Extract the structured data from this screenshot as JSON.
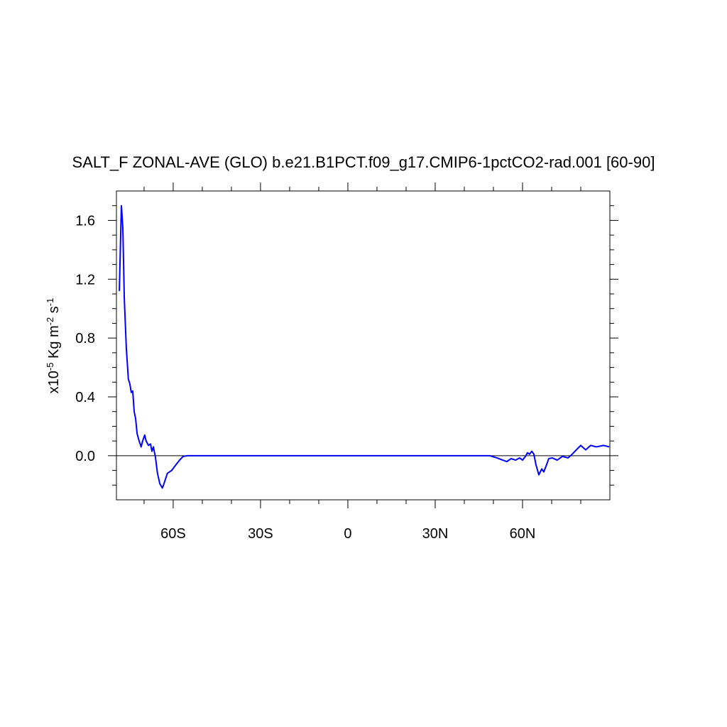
{
  "chart_data": {
    "type": "line",
    "title": "SALT_F ZONAL-AVE (GLO) b.e21.B1PCT.f09_g17.CMIP6-1pctCO2-rad.001 [60-90]",
    "ylabel_parts": [
      {
        "text": "x10"
      },
      {
        "text": "-5",
        "sup": true
      },
      {
        "text": " Kg m"
      },
      {
        "text": "-2",
        "sup": true
      },
      {
        "text": " s"
      },
      {
        "text": "-1",
        "sup": true
      }
    ],
    "xlim": [
      -79.5,
      90
    ],
    "ylim": [
      -0.3,
      1.8
    ],
    "xticks": [
      {
        "value": -60,
        "label": "60S"
      },
      {
        "value": -30,
        "label": "30S"
      },
      {
        "value": 0,
        "label": "0"
      },
      {
        "value": 30,
        "label": "30N"
      },
      {
        "value": 60,
        "label": "60N"
      }
    ],
    "xminorticks": [
      -70,
      -50,
      -40,
      -20,
      -10,
      10,
      20,
      40,
      50,
      70,
      80
    ],
    "yticks": [
      {
        "value": 0,
        "label": "0.0"
      },
      0.4,
      0.8,
      1.2,
      1.6
    ],
    "yminorticks": [
      -0.2,
      -0.1,
      0.1,
      0.2,
      0.3,
      0.5,
      0.6,
      0.7,
      0.9,
      1.0,
      1.1,
      1.3,
      1.4,
      1.5,
      1.7
    ],
    "reference_line": 0,
    "series": [
      {
        "color": "#0000ff",
        "x": [
          -78.5,
          -77.8,
          -77.3,
          -76.8,
          -76.1,
          -75.4,
          -74.9,
          -74.4,
          -73.9,
          -73.4,
          -72.9,
          -72.4,
          -71.7,
          -71.0,
          -70.5,
          -69.8,
          -69.3,
          -68.5,
          -67.8,
          -67.3,
          -66.8,
          -66.1,
          -65.4,
          -64.6,
          -63.7,
          -63.0,
          -62.0,
          -60.5,
          -59.0,
          -57.8,
          -56.6,
          -55.1,
          -50,
          -30,
          0,
          30,
          48.8,
          51.2,
          53.2,
          54.6,
          56.1,
          57.6,
          59.0,
          60.0,
          61.0,
          61.7,
          62.4,
          63.2,
          63.9,
          64.6,
          65.6,
          66.6,
          67.3,
          68.3,
          69.0,
          70.2,
          71.9,
          73.7,
          75.6,
          76.8,
          78.5,
          80.0,
          81.7,
          83.4,
          85.4,
          87.8,
          89.8
        ],
        "values": [
          1.12,
          1.7,
          1.55,
          1.07,
          0.73,
          0.52,
          0.49,
          0.43,
          0.44,
          0.3,
          0.25,
          0.15,
          0.1,
          0.06,
          0.1,
          0.14,
          0.1,
          0.07,
          0.08,
          0.03,
          0.06,
          -0.01,
          -0.12,
          -0.19,
          -0.22,
          -0.18,
          -0.12,
          -0.1,
          -0.06,
          -0.03,
          -0.005,
          0,
          0,
          0,
          0,
          0,
          0,
          -0.015,
          -0.03,
          -0.04,
          -0.02,
          -0.03,
          -0.015,
          -0.03,
          -0.005,
          0.02,
          0.01,
          0.03,
          0.01,
          -0.06,
          -0.13,
          -0.09,
          -0.11,
          -0.06,
          -0.02,
          -0.015,
          -0.03,
          -0.005,
          -0.015,
          0.005,
          0.04,
          0.07,
          0.04,
          0.07,
          0.06,
          0.07,
          0.06
        ]
      }
    ]
  }
}
